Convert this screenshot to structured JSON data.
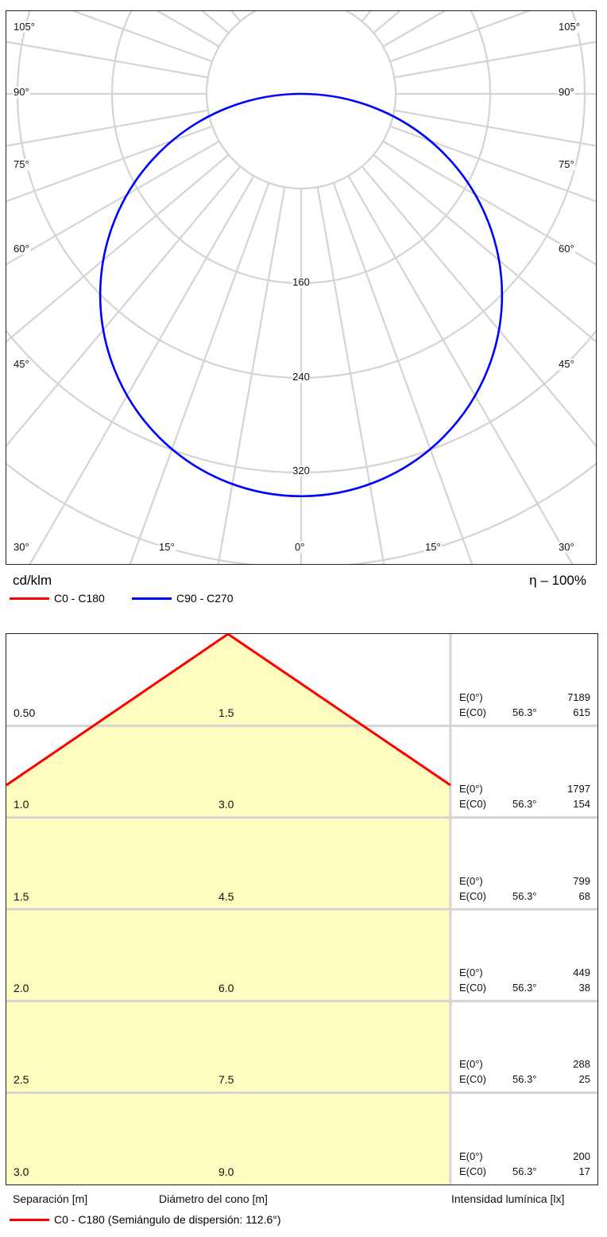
{
  "colors": {
    "c0": "#ff0000",
    "c90": "#0000ff",
    "grid": "#d4d4d4",
    "cone_fill": "#fffcc0"
  },
  "polar": {
    "unit": "cd/klm",
    "efficiency": "η – 100%",
    "angle_labels_left": [
      "105°",
      "90°",
      "75°",
      "60°",
      "45°",
      "30°"
    ],
    "angle_labels_right": [
      "105°",
      "90°",
      "75°",
      "60°",
      "45°",
      "30°"
    ],
    "angle_labels_bottom": [
      "15°",
      "0°",
      "15°"
    ],
    "ring_labels": [
      "160",
      "240",
      "320"
    ],
    "legend": [
      {
        "label": "C0 - C180",
        "color": "#ff0000"
      },
      {
        "label": "C90 - C270",
        "color": "#0000ff"
      }
    ]
  },
  "chart_data": [
    {
      "type": "polar",
      "unit": "cd/klm",
      "radial_ticks": [
        160,
        240,
        320
      ],
      "angular_ticks_deg": [
        0,
        15,
        30,
        45,
        60,
        75,
        90,
        105
      ],
      "series": [
        {
          "name": "C90 - C270",
          "shape": "circle",
          "max_intensity_at_0deg": 340
        },
        {
          "name": "C0 - C180",
          "shape": "circle",
          "max_intensity_at_0deg": 340
        }
      ]
    },
    {
      "type": "table",
      "columns": [
        "Separación [m]",
        "Diámetro del cono [m]",
        "Intensidad lumínica [lx]"
      ],
      "half_angle_label": "C0 - C180 (Semiángulo de dispersión: 112.6°)",
      "rows": [
        {
          "separacion": "0.50",
          "diametro": "1.5",
          "e0": "7189",
          "ec0_angle": "56.3°",
          "ec0": "615"
        },
        {
          "separacion": "1.0",
          "diametro": "3.0",
          "e0": "1797",
          "ec0_angle": "56.3°",
          "ec0": "154"
        },
        {
          "separacion": "1.5",
          "diametro": "4.5",
          "e0": "799",
          "ec0_angle": "56.3°",
          "ec0": "68"
        },
        {
          "separacion": "2.0",
          "diametro": "6.0",
          "e0": "449",
          "ec0_angle": "56.3°",
          "ec0": "38"
        },
        {
          "separacion": "2.5",
          "diametro": "7.5",
          "e0": "288",
          "ec0_angle": "56.3°",
          "ec0": "25"
        },
        {
          "separacion": "3.0",
          "diametro": "9.0",
          "e0": "200",
          "ec0_angle": "56.3°",
          "ec0": "17"
        }
      ]
    }
  ],
  "cone": {
    "e0_label": "E(0°)",
    "ec0_label": "E(C0)",
    "xlabel_sep": "Separación [m]",
    "xlabel_diam": "Diámetro del cono [m]",
    "xlabel_int": "Intensidad lumínica [lx]",
    "legend_label": "C0 - C180 (Semiángulo de dispersión: 112.6°)",
    "legend_color": "#ff0000"
  }
}
